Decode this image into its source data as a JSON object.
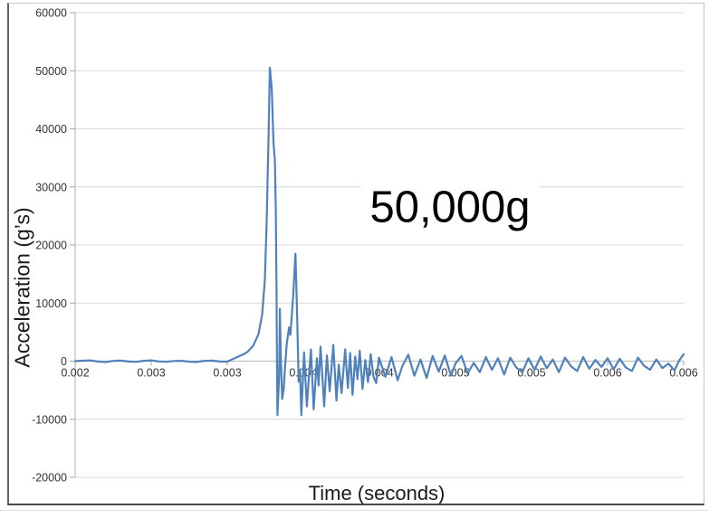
{
  "figure": {
    "background": "#ffffff"
  },
  "chart_data": {
    "type": "line",
    "title": "",
    "xlabel": "Time (seconds)",
    "ylabel": "Acceleration (g’s)",
    "annotation": "50,000g",
    "legend": "none",
    "grid": "horizontal-major",
    "x_range": [
      0.002,
      0.006
    ],
    "y_range": [
      -20000,
      60000
    ],
    "y_ticks": [
      60000,
      50000,
      40000,
      30000,
      20000,
      10000,
      0,
      -10000,
      -20000
    ],
    "y_tick_labels": [
      "60000",
      "50000",
      "40000",
      "30000",
      "20000",
      "10000",
      "0",
      "-10000",
      "-20000"
    ],
    "x_ticks": [
      0.002,
      0.0025,
      0.003,
      0.0035,
      0.004,
      0.0045,
      0.005,
      0.0055,
      0.006
    ],
    "x_tick_labels": [
      "0.002",
      "0.003",
      "0.003",
      "0.004",
      "0.004",
      "0.005",
      "0.005",
      "0.006",
      "0.006"
    ],
    "colors": {
      "grid": "#d9d9d9",
      "axis": "#bfbfbf",
      "tick": "#a6a6a6",
      "tick_text": "#333333",
      "series": "#4f81bd",
      "annotation_text": "#000000"
    },
    "series": [
      {
        "name": "acceleration",
        "color": "#4f81bd",
        "peak_value_g": 50500,
        "points": [
          [
            0.002,
            0
          ],
          [
            0.00205,
            80
          ],
          [
            0.0021,
            120
          ],
          [
            0.00215,
            -60
          ],
          [
            0.0022,
            -150
          ],
          [
            0.00225,
            40
          ],
          [
            0.0023,
            90
          ],
          [
            0.00235,
            -70
          ],
          [
            0.0024,
            -120
          ],
          [
            0.00245,
            60
          ],
          [
            0.0025,
            140
          ],
          [
            0.00255,
            -50
          ],
          [
            0.0026,
            -110
          ],
          [
            0.00265,
            30
          ],
          [
            0.0027,
            70
          ],
          [
            0.00275,
            -90
          ],
          [
            0.0028,
            -140
          ],
          [
            0.00285,
            50
          ],
          [
            0.0029,
            100
          ],
          [
            0.00295,
            -60
          ],
          [
            0.003,
            -80
          ],
          [
            0.003031,
            300
          ],
          [
            0.003073,
            800
          ],
          [
            0.003109,
            1200
          ],
          [
            0.003133,
            1600
          ],
          [
            0.003169,
            2600
          ],
          [
            0.003205,
            4600
          ],
          [
            0.003229,
            8000
          ],
          [
            0.003247,
            14000
          ],
          [
            0.003259,
            24000
          ],
          [
            0.003271,
            38000
          ],
          [
            0.00328,
            50500
          ],
          [
            0.003292,
            47000
          ],
          [
            0.003298,
            42000
          ],
          [
            0.003304,
            37500
          ],
          [
            0.003313,
            34500
          ],
          [
            0.003319,
            26000
          ],
          [
            0.003324,
            12000
          ],
          [
            0.003327,
            0
          ],
          [
            0.00333,
            -9300
          ],
          [
            0.003341,
            -2500
          ],
          [
            0.003346,
            9000
          ],
          [
            0.003352,
            800
          ],
          [
            0.003361,
            -6500
          ],
          [
            0.003371,
            -4800
          ],
          [
            0.003379,
            -1200
          ],
          [
            0.003391,
            3000
          ],
          [
            0.003406,
            5800
          ],
          [
            0.003415,
            4500
          ],
          [
            0.003433,
            11000
          ],
          [
            0.003448,
            18500
          ],
          [
            0.00346,
            7000
          ],
          [
            0.003469,
            -3500
          ],
          [
            0.003478,
            -1500
          ],
          [
            0.003487,
            -9300
          ],
          [
            0.003505,
            1500
          ],
          [
            0.003523,
            -7800
          ],
          [
            0.003538,
            -2200
          ],
          [
            0.00355,
            2000
          ],
          [
            0.003568,
            -8300
          ],
          [
            0.003589,
            500
          ],
          [
            0.0036,
            -4200
          ],
          [
            0.003613,
            2500
          ],
          [
            0.003637,
            -7800
          ],
          [
            0.003655,
            1000
          ],
          [
            0.003673,
            -5200
          ],
          [
            0.003697,
            2800
          ],
          [
            0.003718,
            -6800
          ],
          [
            0.003733,
            -600
          ],
          [
            0.003751,
            -5500
          ],
          [
            0.003775,
            2000
          ],
          [
            0.003793,
            -4600
          ],
          [
            0.003808,
            1400
          ],
          [
            0.003823,
            -5800
          ],
          [
            0.003841,
            800
          ],
          [
            0.003856,
            -3100
          ],
          [
            0.003871,
            1800
          ],
          [
            0.003889,
            -4800
          ],
          [
            0.003907,
            200
          ],
          [
            0.003925,
            -3600
          ],
          [
            0.003943,
            1200
          ],
          [
            0.003961,
            -2600
          ],
          [
            0.003979,
            -3800
          ],
          [
            0.003997,
            600
          ],
          [
            0.00404,
            -2700
          ],
          [
            0.00408,
            700
          ],
          [
            0.00412,
            -3300
          ],
          [
            0.00415,
            -900
          ],
          [
            0.00419,
            1100
          ],
          [
            0.00423,
            -2500
          ],
          [
            0.00427,
            300
          ],
          [
            0.00431,
            -2900
          ],
          [
            0.00435,
            900
          ],
          [
            0.00439,
            -1800
          ],
          [
            0.00443,
            1000
          ],
          [
            0.00447,
            -2500
          ],
          [
            0.0045,
            -400
          ],
          [
            0.00454,
            900
          ],
          [
            0.00458,
            -2100
          ],
          [
            0.00462,
            -300
          ],
          [
            0.00466,
            -1900
          ],
          [
            0.0047,
            700
          ],
          [
            0.00474,
            -1500
          ],
          [
            0.00478,
            500
          ],
          [
            0.00482,
            -2300
          ],
          [
            0.00486,
            600
          ],
          [
            0.0049,
            -1100
          ],
          [
            0.00494,
            -1900
          ],
          [
            0.00498,
            500
          ],
          [
            0.00502,
            -1500
          ],
          [
            0.00506,
            800
          ],
          [
            0.0051,
            -1200
          ],
          [
            0.00514,
            300
          ],
          [
            0.00518,
            -1900
          ],
          [
            0.00522,
            600
          ],
          [
            0.00526,
            -900
          ],
          [
            0.0053,
            -1700
          ],
          [
            0.00534,
            700
          ],
          [
            0.00538,
            -1300
          ],
          [
            0.00542,
            200
          ],
          [
            0.00546,
            -1000
          ],
          [
            0.0055,
            500
          ],
          [
            0.00554,
            -1400
          ],
          [
            0.00558,
            400
          ],
          [
            0.00562,
            -1100
          ],
          [
            0.00566,
            -1700
          ],
          [
            0.0057,
            600
          ],
          [
            0.00574,
            -800
          ],
          [
            0.00578,
            -1500
          ],
          [
            0.00582,
            300
          ],
          [
            0.00586,
            -1200
          ],
          [
            0.0059,
            -400
          ],
          [
            0.00594,
            -1600
          ],
          [
            0.00597,
            100
          ],
          [
            0.006,
            1200
          ]
        ]
      }
    ]
  }
}
